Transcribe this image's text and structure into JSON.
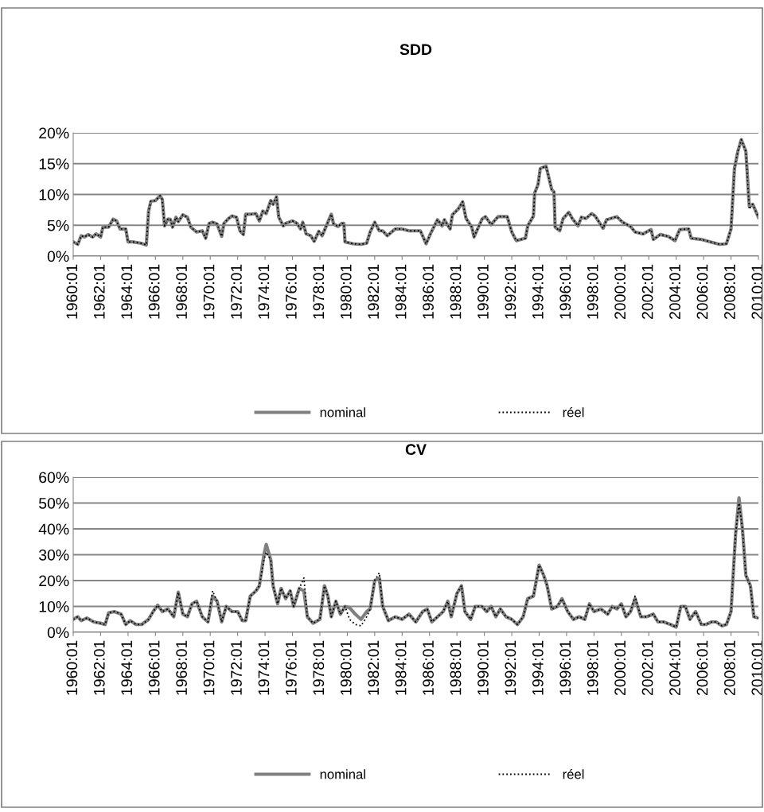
{
  "chart_data": [
    {
      "type": "line",
      "title": "SDD",
      "grid": "y",
      "legend": "bottom",
      "xlim": [
        "1960-01",
        "2010-01"
      ],
      "ylim": [
        0,
        20
      ],
      "xticks": [
        {
          "value": "1960-01",
          "label": "1960:01"
        },
        {
          "value": "1962-01",
          "label": "1962:01"
        },
        {
          "value": "1964-01",
          "label": "1964:01"
        },
        {
          "value": "1966-01",
          "label": "1966:01"
        },
        {
          "value": "1968-01",
          "label": "1968:01"
        },
        {
          "value": "1970-01",
          "label": "1970:01"
        },
        {
          "value": "1972-01",
          "label": "1972:01"
        },
        {
          "value": "1974-01",
          "label": "1974:01"
        },
        {
          "value": "1976-01",
          "label": "1976:01"
        },
        {
          "value": "1978-01",
          "label": "1978:01"
        },
        {
          "value": "1980-01",
          "label": "1980:01"
        },
        {
          "value": "1982-01",
          "label": "1982:01"
        },
        {
          "value": "1984-01",
          "label": "1984:01"
        },
        {
          "value": "1986-01",
          "label": "1986:01"
        },
        {
          "value": "1988-01",
          "label": "1988:01"
        },
        {
          "value": "1990-01",
          "label": "1990:01"
        },
        {
          "value": "1992-01",
          "label": "1992:01"
        },
        {
          "value": "1994-01",
          "label": "1994:01"
        },
        {
          "value": "1996-01",
          "label": "1996:01"
        },
        {
          "value": "1998-01",
          "label": "1998:01"
        },
        {
          "value": "2000-01",
          "label": "2000:01"
        },
        {
          "value": "2002-01",
          "label": "2002:01"
        },
        {
          "value": "2004-01",
          "label": "2004:01"
        },
        {
          "value": "2006-01",
          "label": "2006:01"
        },
        {
          "value": "2008-01",
          "label": "2008:01"
        },
        {
          "value": "2010-01",
          "label": "2010:01"
        }
      ],
      "yticks": [
        {
          "value": 0,
          "label": "0%"
        },
        {
          "value": 5,
          "label": "5%"
        },
        {
          "value": 10,
          "label": "10%"
        },
        {
          "value": 15,
          "label": "15%"
        },
        {
          "value": 20,
          "label": "20%"
        }
      ],
      "x": [
        "1960-01",
        "1960-05",
        "1960-08",
        "1960-11",
        "1961-02",
        "1961-06",
        "1961-09",
        "1962-01",
        "1962-03",
        "1962-08",
        "1962-12",
        "1963-03",
        "1963-06",
        "1963-11",
        "1964-01",
        "1964-05",
        "1964-12",
        "1965-05",
        "1965-07",
        "1965-09",
        "1966-01",
        "1966-05",
        "1966-07",
        "1966-09",
        "1966-12",
        "1967-02",
        "1967-04",
        "1967-07",
        "1967-09",
        "1968-01",
        "1968-05",
        "1968-08",
        "1969-01",
        "1969-06",
        "1969-09",
        "1969-12",
        "1970-03",
        "1970-07",
        "1970-11",
        "1971-01",
        "1971-05",
        "1971-08",
        "1971-12",
        "1972-03",
        "1972-06",
        "1972-08",
        "1973-01",
        "1973-05",
        "1973-08",
        "1973-11",
        "1974-02",
        "1974-06",
        "1974-08",
        "1974-11",
        "1975-01",
        "1975-05",
        "1975-07",
        "1976-01",
        "1976-05",
        "1976-08",
        "1976-10",
        "1977-01",
        "1977-05",
        "1977-08",
        "1977-12",
        "1978-03",
        "1978-08",
        "1978-11",
        "1979-01",
        "1979-05",
        "1979-08",
        "1979-10",
        "1979-11",
        "1980-06",
        "1981-01",
        "1981-06",
        "1981-09",
        "1982-01",
        "1982-05",
        "1982-08",
        "1982-12",
        "1983-07",
        "1984-01",
        "1984-07",
        "1985-05",
        "1985-10",
        "1986-02",
        "1986-08",
        "1986-12",
        "1987-02",
        "1987-07",
        "1987-09",
        "1988-02",
        "1988-06",
        "1988-09",
        "1989-02",
        "1989-04",
        "1989-11",
        "1990-02",
        "1990-07",
        "1991-01",
        "1991-09",
        "1992-01",
        "1992-05",
        "1993-01",
        "1993-03",
        "1993-08",
        "1993-09",
        "1993-12",
        "1994-02",
        "1994-07",
        "1994-12",
        "1995-02",
        "1995-03",
        "1995-07",
        "1995-10",
        "1996-03",
        "1996-06",
        "1996-11",
        "1997-02",
        "1997-06",
        "1997-11",
        "1998-02",
        "1998-09",
        "1998-12",
        "1999-09",
        "2000-02",
        "2000-09",
        "2001-01",
        "2001-08",
        "2002-03",
        "2002-05",
        "2002-11",
        "2003-06",
        "2003-12",
        "2004-04",
        "2004-12",
        "2005-02",
        "2005-11",
        "2006-07",
        "2007-03",
        "2007-09",
        "2008-01",
        "2008-04",
        "2008-07",
        "2008-10",
        "2009-02",
        "2009-05",
        "2009-08",
        "2010-01"
      ],
      "series": [
        {
          "name": "nominal",
          "color": "#808080",
          "line_style": "solid",
          "values": [
            2.3,
            1.9,
            3.3,
            3.1,
            3.5,
            3.1,
            3.6,
            3.1,
            4.7,
            4.7,
            6.0,
            5.7,
            4.4,
            4.4,
            2.3,
            2.3,
            2.1,
            1.8,
            7.3,
            8.9,
            9.0,
            9.8,
            9.2,
            4.9,
            6.0,
            6.0,
            4.7,
            6.3,
            5.6,
            6.7,
            6.3,
            4.7,
            3.9,
            4.1,
            2.9,
            5.3,
            5.5,
            5.2,
            3.2,
            5.3,
            6.1,
            6.5,
            6.3,
            4.1,
            3.5,
            6.8,
            6.8,
            6.9,
            5.7,
            7.3,
            6.9,
            9.0,
            8.4,
            9.6,
            6.3,
            4.9,
            5.3,
            5.7,
            5.3,
            4.4,
            5.5,
            3.6,
            3.3,
            2.4,
            4.0,
            3.3,
            5.5,
            6.8,
            5.2,
            4.8,
            5.3,
            5.3,
            2.3,
            2.0,
            1.9,
            2.1,
            3.9,
            5.5,
            4.1,
            4.1,
            3.3,
            4.4,
            4.4,
            4.1,
            4.1,
            2.0,
            3.7,
            5.9,
            4.9,
            5.9,
            4.4,
            6.7,
            7.6,
            8.8,
            6.1,
            4.7,
            3.1,
            6.0,
            6.4,
            5.1,
            6.4,
            6.4,
            3.9,
            2.5,
            2.9,
            4.9,
            6.5,
            10.2,
            11.6,
            14.2,
            14.6,
            10.8,
            10.4,
            4.7,
            4.1,
            6.1,
            7.1,
            6.1,
            4.9,
            6.3,
            6.1,
            6.9,
            6.5,
            4.5,
            5.9,
            6.4,
            5.5,
            4.8,
            3.9,
            3.6,
            4.3,
            2.7,
            3.5,
            3.2,
            2.5,
            4.3,
            4.4,
            2.9,
            2.7,
            2.3,
            1.9,
            2.0,
            4.4,
            14.2,
            17.0,
            18.9,
            17.0,
            8.1,
            8.4,
            6.3
          ]
        },
        {
          "name": "réel",
          "color": "#000000",
          "line_style": "dotted",
          "values": [
            2.3,
            1.9,
            3.3,
            3.1,
            3.5,
            3.1,
            3.6,
            3.1,
            4.7,
            4.7,
            6.0,
            5.7,
            4.4,
            4.4,
            2.3,
            2.3,
            2.1,
            1.8,
            7.3,
            8.9,
            9.0,
            9.8,
            9.2,
            4.9,
            6.0,
            6.0,
            4.7,
            6.3,
            5.6,
            6.7,
            6.3,
            4.7,
            3.9,
            4.1,
            2.9,
            5.3,
            5.5,
            5.2,
            3.2,
            5.3,
            6.1,
            6.5,
            6.3,
            4.1,
            3.5,
            6.8,
            6.8,
            6.9,
            5.7,
            7.3,
            6.9,
            9.0,
            8.4,
            9.6,
            6.3,
            4.9,
            5.3,
            5.7,
            5.3,
            4.4,
            5.5,
            3.6,
            3.3,
            2.4,
            4.0,
            3.3,
            5.5,
            6.8,
            5.2,
            4.8,
            5.3,
            5.3,
            2.3,
            2.0,
            1.9,
            2.1,
            3.9,
            5.5,
            4.1,
            4.1,
            3.3,
            4.4,
            4.4,
            4.1,
            4.1,
            2.0,
            3.7,
            5.9,
            4.9,
            5.9,
            4.4,
            6.7,
            7.6,
            8.8,
            6.1,
            4.7,
            3.1,
            6.0,
            6.4,
            5.1,
            6.4,
            6.4,
            3.9,
            2.5,
            2.9,
            4.9,
            6.5,
            10.2,
            11.6,
            14.2,
            14.6,
            10.8,
            10.4,
            4.7,
            4.1,
            6.1,
            7.1,
            6.1,
            4.9,
            6.3,
            6.1,
            6.9,
            6.5,
            4.5,
            5.9,
            6.4,
            5.5,
            4.8,
            3.9,
            3.6,
            4.3,
            2.7,
            3.5,
            3.2,
            2.5,
            4.3,
            4.4,
            2.9,
            2.7,
            2.3,
            1.9,
            2.0,
            4.4,
            14.2,
            17.0,
            18.9,
            17.0,
            7.6,
            8.4,
            6.3
          ]
        }
      ]
    },
    {
      "type": "line",
      "title": "CV",
      "grid": "y",
      "legend": "bottom",
      "xlim": [
        "1960-01",
        "2010-01"
      ],
      "ylim": [
        0,
        60
      ],
      "xticks": [
        {
          "value": "1960-01",
          "label": "1960:01"
        },
        {
          "value": "1962-01",
          "label": "1962:01"
        },
        {
          "value": "1964-01",
          "label": "1964:01"
        },
        {
          "value": "1966-01",
          "label": "1966:01"
        },
        {
          "value": "1968-01",
          "label": "1968:01"
        },
        {
          "value": "1970-01",
          "label": "1970:01"
        },
        {
          "value": "1972-01",
          "label": "1972:01"
        },
        {
          "value": "1974-01",
          "label": "1974:01"
        },
        {
          "value": "1976-01",
          "label": "1976:01"
        },
        {
          "value": "1978-01",
          "label": "1978:01"
        },
        {
          "value": "1980-01",
          "label": "1980:01"
        },
        {
          "value": "1982-01",
          "label": "1982:01"
        },
        {
          "value": "1984-01",
          "label": "1984:01"
        },
        {
          "value": "1986-01",
          "label": "1986:01"
        },
        {
          "value": "1988-01",
          "label": "1988:01"
        },
        {
          "value": "1990-01",
          "label": "1990:01"
        },
        {
          "value": "1992-01",
          "label": "1992:01"
        },
        {
          "value": "1994-01",
          "label": "1994:01"
        },
        {
          "value": "1996-01",
          "label": "1996:01"
        },
        {
          "value": "1998-01",
          "label": "1998:01"
        },
        {
          "value": "2000-01",
          "label": "2000:01"
        },
        {
          "value": "2002-01",
          "label": "2002:01"
        },
        {
          "value": "2004-01",
          "label": "2004:01"
        },
        {
          "value": "2006-01",
          "label": "2006:01"
        },
        {
          "value": "2008-01",
          "label": "2008:01"
        },
        {
          "value": "2010-01",
          "label": "2010:01"
        }
      ],
      "yticks": [
        {
          "value": 0,
          "label": "0%"
        },
        {
          "value": 10,
          "label": "10%"
        },
        {
          "value": 20,
          "label": "20%"
        },
        {
          "value": 30,
          "label": "30%"
        },
        {
          "value": 40,
          "label": "40%"
        },
        {
          "value": 50,
          "label": "50%"
        },
        {
          "value": 60,
          "label": "60%"
        }
      ],
      "x": [
        "1960-01",
        "1960-05",
        "1960-08",
        "1961-01",
        "1961-07",
        "1962-01",
        "1962-05",
        "1962-08",
        "1963-01",
        "1963-07",
        "1963-11",
        "1964-03",
        "1964-08",
        "1965-01",
        "1965-07",
        "1965-11",
        "1966-03",
        "1966-07",
        "1966-12",
        "1967-05",
        "1967-09",
        "1968-01",
        "1968-05",
        "1968-09",
        "1969-01",
        "1969-06",
        "1969-11",
        "1970-03",
        "1970-07",
        "1970-11",
        "1971-03",
        "1971-08",
        "1972-01",
        "1972-05",
        "1972-08",
        "1972-12",
        "1973-05",
        "1973-08",
        "1973-12",
        "1974-02",
        "1974-06",
        "1974-08",
        "1974-12",
        "1975-03",
        "1975-07",
        "1975-11",
        "1976-02",
        "1976-07",
        "1976-11",
        "1977-02",
        "1977-07",
        "1978-01",
        "1978-05",
        "1978-08",
        "1978-11",
        "1979-03",
        "1979-07",
        "1979-11",
        "1980-03",
        "1980-08",
        "1981-01",
        "1981-06",
        "1981-09",
        "1982-01",
        "1982-05",
        "1982-08",
        "1983-01",
        "1983-07",
        "1984-01",
        "1984-07",
        "1985-01",
        "1985-07",
        "1985-11",
        "1986-03",
        "1986-08",
        "1987-01",
        "1987-05",
        "1987-08",
        "1988-01",
        "1988-05",
        "1988-08",
        "1989-01",
        "1989-05",
        "1989-11",
        "1990-03",
        "1990-07",
        "1990-11",
        "1991-03",
        "1991-08",
        "1992-01",
        "1992-06",
        "1992-11",
        "1993-03",
        "1993-08",
        "1994-01",
        "1994-05",
        "1994-08",
        "1994-12",
        "1995-05",
        "1995-09",
        "1996-02",
        "1996-07",
        "1996-12",
        "1997-05",
        "1997-09",
        "1998-01",
        "1998-07",
        "1999-01",
        "1999-05",
        "1999-09",
        "2000-01",
        "2000-05",
        "2000-09",
        "2001-01",
        "2001-06",
        "2001-11",
        "2002-05",
        "2002-09",
        "2003-02",
        "2003-08",
        "2004-01",
        "2004-05",
        "2004-09",
        "2005-01",
        "2005-06",
        "2005-11",
        "2006-03",
        "2006-08",
        "2006-12",
        "2007-05",
        "2007-09",
        "2008-01",
        "2008-05",
        "2008-08",
        "2008-11",
        "2009-02",
        "2009-06",
        "2009-09",
        "2010-01"
      ],
      "series": [
        {
          "name": "nominal",
          "color": "#808080",
          "line_style": "solid",
          "values": [
            5,
            6,
            4.5,
            5.5,
            4,
            3.5,
            3,
            7.5,
            8,
            7,
            3,
            4.5,
            3,
            3,
            5,
            8,
            10.5,
            8,
            9,
            6,
            15.5,
            7,
            6,
            11,
            12,
            6,
            4,
            14,
            12,
            4,
            10,
            8,
            8,
            4.5,
            4.5,
            14,
            16,
            18,
            30,
            34,
            28,
            18,
            11,
            17,
            13,
            16,
            10,
            17,
            16,
            6,
            3.5,
            5,
            18,
            14,
            6,
            12,
            7,
            10,
            9.5,
            7,
            5,
            8,
            9,
            20,
            21,
            10,
            4.5,
            6,
            5,
            7,
            4,
            8,
            9,
            4,
            6,
            8,
            12,
            6,
            15,
            18,
            8,
            5,
            10,
            10,
            8,
            10,
            6,
            9,
            6,
            5,
            3,
            6,
            13,
            14,
            26,
            22,
            18,
            9,
            10,
            13,
            8,
            5,
            6,
            5,
            11,
            8,
            9,
            7,
            10,
            9,
            11,
            6,
            8,
            13,
            6,
            6,
            7,
            4,
            4,
            3,
            2,
            10,
            10,
            5,
            8,
            3,
            3,
            4,
            4,
            2.5,
            3,
            8,
            38,
            52,
            40,
            22,
            18,
            6,
            5.5
          ]
        },
        {
          "name": "réel",
          "color": "#000000",
          "line_style": "dotted",
          "values": [
            5,
            6,
            4.5,
            5.5,
            4,
            3.5,
            3,
            7.5,
            8,
            7,
            3,
            4.5,
            3,
            3,
            5,
            8,
            10.5,
            8,
            9,
            6,
            15.5,
            7,
            6,
            11,
            12,
            6,
            4,
            16,
            12,
            4,
            10,
            8,
            8,
            4.5,
            4.5,
            14,
            16,
            18,
            28,
            31,
            28,
            18,
            11,
            17,
            13,
            16,
            10,
            17,
            21,
            6,
            3.5,
            5,
            18,
            14,
            6,
            12,
            7,
            10,
            5,
            3,
            2.5,
            6,
            9,
            20,
            23,
            10,
            4.5,
            6,
            5,
            7,
            4,
            8,
            9,
            4,
            6,
            8,
            12,
            6,
            15,
            18,
            8,
            5,
            10,
            10,
            8,
            10,
            6,
            9,
            6,
            5,
            3,
            6,
            13,
            14,
            26,
            22,
            18,
            9,
            10,
            13,
            8,
            5,
            6,
            5,
            11,
            8,
            9,
            7,
            10,
            9,
            11,
            6,
            8,
            14,
            6,
            6,
            7,
            4,
            4,
            3,
            2,
            10,
            10,
            5,
            8,
            3,
            3,
            4,
            4,
            2.5,
            3,
            8,
            38,
            50,
            40,
            22,
            18,
            6,
            5.5
          ]
        }
      ]
    }
  ]
}
